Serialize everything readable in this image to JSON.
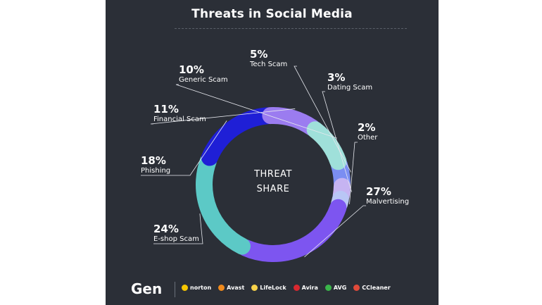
{
  "title": "Threats in Social Media",
  "center_text": [
    "THREAT",
    "SHARE"
  ],
  "chart_data": {
    "type": "pie",
    "subtype": "donut",
    "title": "Threats in Social Media",
    "slices": [
      {
        "name": "Tech Scam",
        "value": 5,
        "label": "5%",
        "color": "#7b8ef2"
      },
      {
        "name": "Dating Scam",
        "value": 3,
        "label": "3%",
        "color": "#c6b4f2"
      },
      {
        "name": "Other",
        "value": 2,
        "label": "2%",
        "color": "#b9c6f5"
      },
      {
        "name": "Malvertising",
        "value": 27,
        "label": "27%",
        "color": "#7d55f0"
      },
      {
        "name": "E-shop Scam",
        "value": 24,
        "label": "24%",
        "color": "#5cc9c6"
      },
      {
        "name": "Phishing",
        "value": 18,
        "label": "18%",
        "color": "#1f1fd6"
      },
      {
        "name": "Financial Scam",
        "value": 11,
        "label": "11%",
        "color": "#9b7cf0"
      },
      {
        "name": "Generic Scam",
        "value": 10,
        "label": "10%",
        "color": "#9fe0da"
      }
    ]
  },
  "footer": {
    "brand": "Gen",
    "partners": [
      {
        "name": "norton",
        "color": "#f7c600"
      },
      {
        "name": "Avast",
        "color": "#f08a1c"
      },
      {
        "name": "LifeLock",
        "color": "#f7d24a"
      },
      {
        "name": "Avira",
        "color": "#d9282f"
      },
      {
        "name": "AVG",
        "color": "#3ab54a"
      },
      {
        "name": "CCleaner",
        "color": "#e04a3a"
      }
    ]
  }
}
